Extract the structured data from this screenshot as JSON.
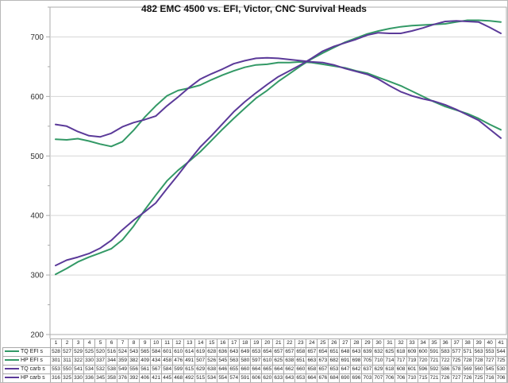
{
  "colors": {
    "efi_line": "#339966",
    "carb_line": "#5B3A99",
    "gridline": "#D6D6D6",
    "plot_border": "#ABABAB",
    "axis_text": "#333333",
    "title_text": "#141414"
  },
  "chart_data": {
    "type": "line",
    "title": "482 EMC 4500 vs. EFI, Victor, CNC Survival Heads",
    "xlabel": "",
    "ylabel": "",
    "x": [
      1,
      2,
      3,
      4,
      5,
      6,
      7,
      8,
      9,
      10,
      11,
      12,
      13,
      14,
      15,
      16,
      17,
      18,
      19,
      20,
      21,
      22,
      23,
      24,
      25,
      26,
      27,
      28,
      29,
      30,
      31,
      32,
      33,
      34,
      35,
      36,
      37,
      38,
      39,
      40,
      41
    ],
    "series": [
      {
        "name": "TQ EFI s",
        "color": "#339966",
        "values": [
          528,
          527,
          529,
          525,
          520,
          516,
          524,
          543,
          565,
          584,
          601,
          610,
          614,
          619,
          628,
          636,
          643,
          649,
          653,
          654,
          657,
          657,
          658,
          657,
          654,
          651,
          648,
          643,
          639,
          632,
          625,
          618,
          609,
          600,
          591,
          583,
          577,
          571,
          563,
          553,
          544
        ]
      },
      {
        "name": "HP EFI s",
        "color": "#339966",
        "values": [
          301,
          311,
          322,
          330,
          337,
          344,
          359,
          382,
          409,
          434,
          458,
          476,
          491,
          507,
          526,
          545,
          563,
          580,
          597,
          610,
          625,
          638,
          651,
          663,
          673,
          682,
          691,
          698,
          705,
          710,
          714,
          717,
          719,
          720,
          721,
          722,
          725,
          728,
          728,
          727,
          725
        ]
      },
      {
        "name": "TQ carb s",
        "color": "#5B3A99",
        "values": [
          553,
          550,
          541,
          534,
          532,
          538,
          549,
          556,
          561,
          567,
          584,
          599,
          615,
          629,
          638,
          646,
          655,
          660,
          664,
          665,
          664,
          662,
          660,
          658,
          657,
          653,
          647,
          642,
          637,
          629,
          618,
          608,
          601,
          596,
          592,
          586,
          578,
          569,
          560,
          545,
          530
        ]
      },
      {
        "name": "HP carb s",
        "color": "#5B3A99",
        "values": [
          316,
          325,
          330,
          336,
          345,
          358,
          376,
          392,
          406,
          421,
          445,
          468,
          492,
          515,
          534,
          554,
          574,
          591,
          606,
          620,
          633,
          643,
          653,
          664,
          676,
          684,
          690,
          696,
          703,
          707,
          706,
          706,
          710,
          715,
          721,
          726,
          727,
          726,
          725,
          716,
          706
        ]
      }
    ],
    "ylim": [
      200,
      750
    ],
    "yticks": [
      200,
      300,
      400,
      500,
      600,
      700
    ],
    "y_minor_step": 50,
    "grid": true,
    "legend_position": "data-table-left",
    "data_table_shown": true
  }
}
